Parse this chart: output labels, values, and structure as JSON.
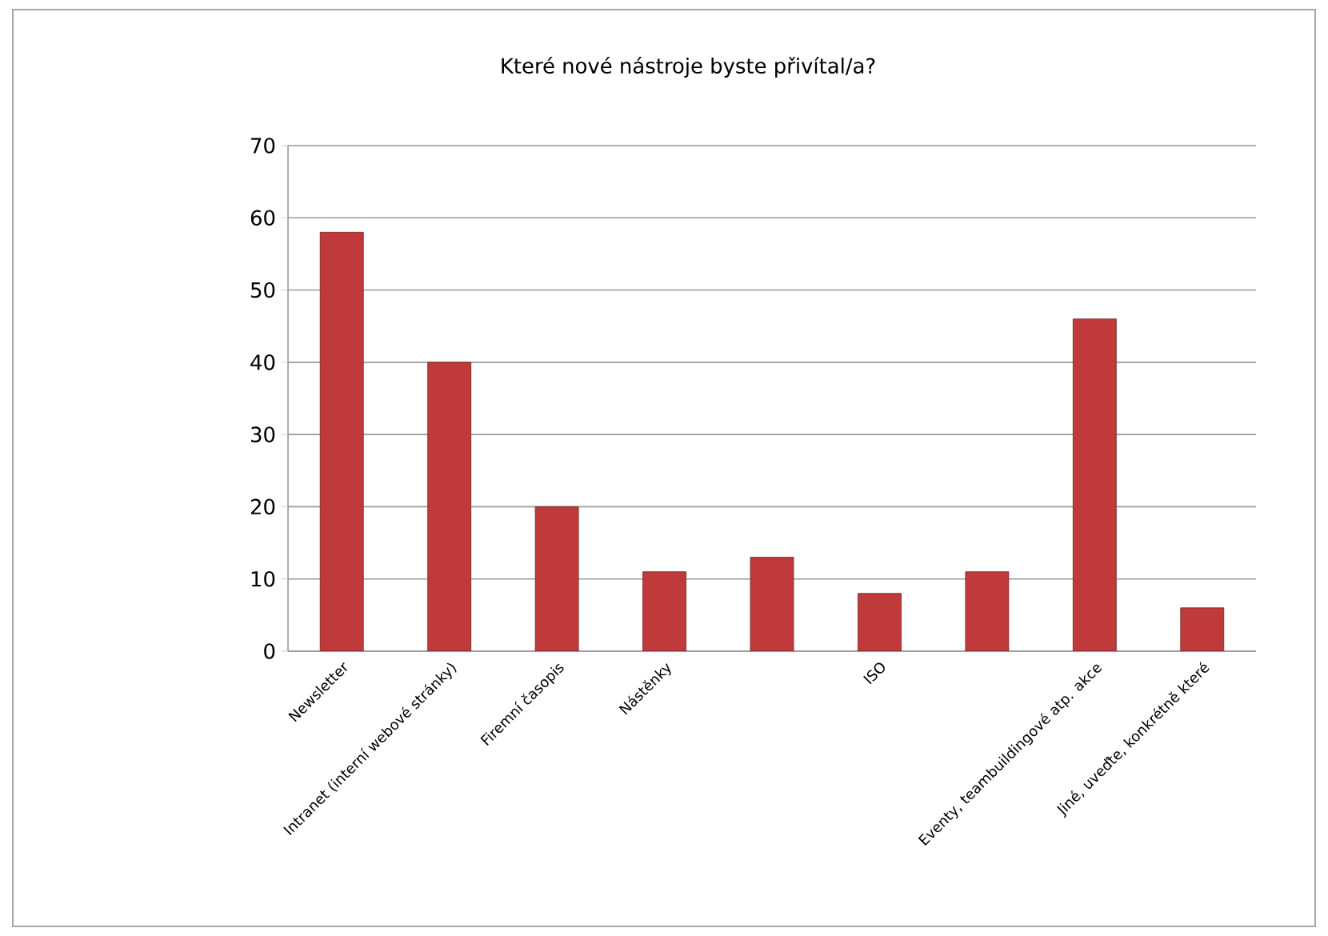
{
  "chart_data": {
    "type": "bar",
    "title": "Které nové nástroje byste přivítal/a?",
    "categories": [
      "Newsletter",
      "Intranet (interní webové stránky)",
      "Firemní časopis",
      "Nástěnky",
      null,
      "ISO",
      null,
      "Eventy, teambuildingové atp. akce",
      "Jiné, uveďte, konkrétně které"
    ],
    "values": [
      58,
      40,
      20,
      11,
      13,
      8,
      11,
      46,
      6
    ],
    "color": "#c0393b",
    "ylim": [
      0,
      70
    ],
    "yticks": [
      0,
      10,
      20,
      30,
      40,
      50,
      60,
      70
    ],
    "grid": "y"
  }
}
